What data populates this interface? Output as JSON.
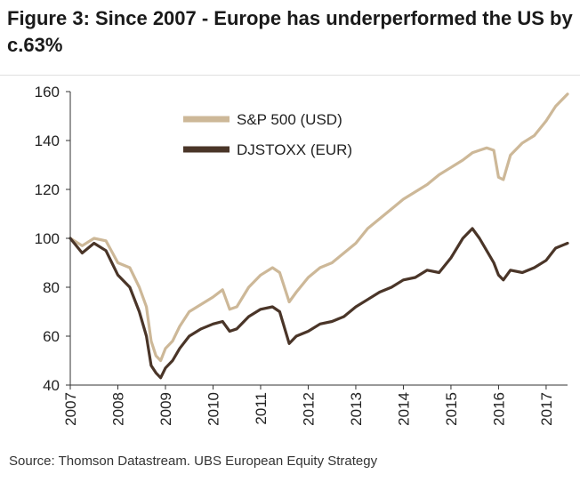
{
  "figure": {
    "title": "Figure 3: Since 2007 - Europe has underperformed the US by c.63%",
    "source": "Source:  Thomson Datastream. UBS European Equity Strategy"
  },
  "colors": {
    "sp500": "#cdb898",
    "djstoxx": "#4a3528",
    "axis": "#333333"
  },
  "chart_data": {
    "type": "line",
    "title": "Figure 3: Since 2007 - Europe has underperformed the US by c.63%",
    "xlabel": "",
    "ylabel": "",
    "xlim": [
      2007,
      2017.45
    ],
    "ylim": [
      40,
      160
    ],
    "yticks": [
      40,
      60,
      80,
      100,
      120,
      140,
      160
    ],
    "xticks": [
      2007,
      2008,
      2009,
      2010,
      2011,
      2012,
      2013,
      2014,
      2015,
      2016,
      2017
    ],
    "grid": false,
    "legend_position": "top-center",
    "series": [
      {
        "name": "S&P 500 (USD)",
        "x": [
          2007.0,
          2007.25,
          2007.5,
          2007.75,
          2008.0,
          2008.25,
          2008.45,
          2008.6,
          2008.7,
          2008.8,
          2008.9,
          2009.0,
          2009.15,
          2009.3,
          2009.5,
          2009.75,
          2010.0,
          2010.2,
          2010.35,
          2010.5,
          2010.75,
          2011.0,
          2011.25,
          2011.4,
          2011.6,
          2011.75,
          2012.0,
          2012.25,
          2012.5,
          2012.75,
          2013.0,
          2013.25,
          2013.5,
          2013.75,
          2014.0,
          2014.25,
          2014.5,
          2014.75,
          2015.0,
          2015.25,
          2015.45,
          2015.6,
          2015.75,
          2015.9,
          2016.0,
          2016.1,
          2016.25,
          2016.5,
          2016.75,
          2017.0,
          2017.2,
          2017.45
        ],
        "values": [
          100,
          97,
          100,
          99,
          90,
          88,
          80,
          72,
          58,
          52,
          50,
          55,
          58,
          64,
          70,
          73,
          76,
          79,
          71,
          72,
          80,
          85,
          88,
          86,
          74,
          78,
          84,
          88,
          90,
          94,
          98,
          104,
          108,
          112,
          116,
          119,
          122,
          126,
          129,
          132,
          135,
          136,
          137,
          136,
          125,
          124,
          134,
          139,
          142,
          148,
          154,
          159
        ]
      },
      {
        "name": "DJSTOXX (EUR)",
        "x": [
          2007.0,
          2007.25,
          2007.5,
          2007.75,
          2008.0,
          2008.25,
          2008.45,
          2008.6,
          2008.7,
          2008.8,
          2008.9,
          2009.0,
          2009.15,
          2009.3,
          2009.5,
          2009.75,
          2010.0,
          2010.2,
          2010.35,
          2010.5,
          2010.75,
          2011.0,
          2011.25,
          2011.4,
          2011.6,
          2011.75,
          2012.0,
          2012.25,
          2012.5,
          2012.75,
          2013.0,
          2013.25,
          2013.5,
          2013.75,
          2014.0,
          2014.25,
          2014.5,
          2014.75,
          2015.0,
          2015.25,
          2015.45,
          2015.6,
          2015.75,
          2015.9,
          2016.0,
          2016.1,
          2016.25,
          2016.5,
          2016.75,
          2017.0,
          2017.2,
          2017.45
        ],
        "values": [
          100,
          94,
          98,
          95,
          85,
          80,
          70,
          60,
          48,
          45,
          43,
          47,
          50,
          55,
          60,
          63,
          65,
          66,
          62,
          63,
          68,
          71,
          72,
          70,
          57,
          60,
          62,
          65,
          66,
          68,
          72,
          75,
          78,
          80,
          83,
          84,
          87,
          86,
          92,
          100,
          104,
          100,
          95,
          90,
          85,
          83,
          87,
          86,
          88,
          91,
          96,
          98
        ]
      }
    ]
  }
}
